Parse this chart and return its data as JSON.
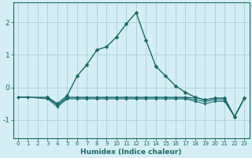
{
  "xlabel": "Humidex (Indice chaleur)",
  "xlim": [
    -0.5,
    23.5
  ],
  "ylim": [
    -1.55,
    2.6
  ],
  "background_color": "#d4eef4",
  "grid_color": "#aad0da",
  "line_color": "#1a6b6b",
  "series_main": [
    null,
    null,
    null,
    -0.3,
    -0.5,
    -0.25,
    0.35,
    0.7,
    1.15,
    1.25,
    1.55,
    1.95,
    2.3,
    1.45,
    0.65,
    0.35,
    0.05,
    -0.15,
    -0.3,
    -0.38,
    -0.33,
    -0.33,
    -0.9,
    -0.33
  ],
  "series_flat1": [
    -0.3,
    -0.3,
    null,
    -0.3,
    -0.55,
    -0.3,
    -0.3,
    -0.3,
    -0.3,
    -0.3,
    -0.3,
    -0.3,
    -0.3,
    -0.3,
    -0.3,
    -0.3,
    -0.3,
    -0.3,
    -0.32,
    -0.38,
    -0.33,
    -0.33,
    -0.9,
    -0.33
  ],
  "series_flat2": [
    -0.3,
    -0.3,
    null,
    -0.32,
    -0.55,
    -0.32,
    -0.32,
    -0.32,
    -0.32,
    -0.32,
    -0.32,
    -0.32,
    -0.32,
    -0.32,
    -0.32,
    -0.32,
    -0.32,
    -0.32,
    -0.38,
    -0.43,
    -0.38,
    -0.38,
    -0.9,
    -0.33
  ],
  "series_flat3": [
    -0.3,
    -0.3,
    null,
    -0.35,
    -0.6,
    -0.35,
    -0.35,
    -0.35,
    -0.35,
    -0.35,
    -0.35,
    -0.35,
    -0.35,
    -0.35,
    -0.35,
    -0.35,
    -0.35,
    -0.35,
    -0.43,
    -0.5,
    -0.43,
    -0.43,
    -0.9,
    -0.33
  ],
  "xticks": [
    0,
    1,
    2,
    3,
    4,
    5,
    6,
    7,
    8,
    9,
    10,
    11,
    12,
    13,
    14,
    15,
    16,
    17,
    18,
    19,
    20,
    21,
    22,
    23
  ],
  "yticks": [
    -1,
    0,
    1,
    2
  ],
  "xlabel_fontsize": 6.5,
  "xtick_fontsize": 5,
  "ytick_fontsize": 6.5,
  "linewidth_main": 1.0,
  "linewidth_flat": 0.75,
  "markersize_main": 2.5,
  "markersize_flat": 1.8
}
